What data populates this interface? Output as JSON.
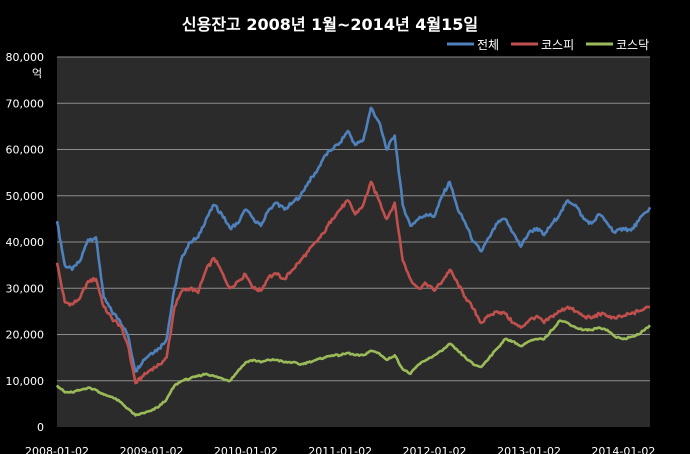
{
  "chart_data": {
    "type": "line",
    "title": "신용잔고  2008년 1월~2014년 4월15일",
    "ylabel": "억",
    "ylim": [
      0,
      80000
    ],
    "yticks": [
      "0",
      "10,000",
      "20,000",
      "30,000",
      "40,000",
      "50,000",
      "60,000",
      "70,000",
      "80,000"
    ],
    "xticks": [
      "2008-01-02",
      "2009-01-02",
      "2010-01-02",
      "2011-01-02",
      "2012-01-02",
      "2013-01-02",
      "2014-01-02"
    ],
    "xrange": [
      "2008-01-02",
      "2014-04-15"
    ],
    "grid": true,
    "legend_position": "top-right",
    "x": [
      "2008-01-02",
      "2008-02-01",
      "2008-03-01",
      "2008-04-01",
      "2008-05-01",
      "2008-06-01",
      "2008-07-01",
      "2008-08-01",
      "2008-09-01",
      "2008-10-01",
      "2008-11-01",
      "2008-12-01",
      "2009-01-01",
      "2009-02-01",
      "2009-03-01",
      "2009-04-01",
      "2009-05-01",
      "2009-06-01",
      "2009-07-01",
      "2009-08-01",
      "2009-09-01",
      "2009-10-01",
      "2009-11-01",
      "2009-12-01",
      "2010-01-01",
      "2010-02-01",
      "2010-03-01",
      "2010-04-01",
      "2010-05-01",
      "2010-06-01",
      "2010-07-01",
      "2010-08-01",
      "2010-09-01",
      "2010-10-01",
      "2010-11-01",
      "2010-12-01",
      "2011-01-01",
      "2011-02-01",
      "2011-03-01",
      "2011-04-01",
      "2011-05-01",
      "2011-06-01",
      "2011-07-01",
      "2011-08-01",
      "2011-09-01",
      "2011-10-01",
      "2011-11-01",
      "2011-12-01",
      "2012-01-01",
      "2012-02-01",
      "2012-03-01",
      "2012-04-01",
      "2012-05-01",
      "2012-06-01",
      "2012-07-01",
      "2012-08-01",
      "2012-09-01",
      "2012-10-01",
      "2012-11-01",
      "2012-12-01",
      "2013-01-01",
      "2013-02-01",
      "2013-03-01",
      "2013-04-01",
      "2013-05-01",
      "2013-06-01",
      "2013-07-01",
      "2013-08-01",
      "2013-09-01",
      "2013-10-01",
      "2013-11-01",
      "2013-12-01",
      "2014-01-01",
      "2014-02-01",
      "2014-03-01",
      "2014-04-15"
    ],
    "series": [
      {
        "name": "전체",
        "color": "#4f81bd",
        "values": [
          44500,
          35000,
          34000,
          36000,
          40500,
          41000,
          28000,
          25000,
          23000,
          20000,
          12000,
          14500,
          16000,
          17000,
          19000,
          30000,
          37000,
          40000,
          41000,
          45000,
          48000,
          46000,
          43000,
          44000,
          47000,
          45000,
          43500,
          47000,
          48500,
          47000,
          48500,
          50000,
          53000,
          55000,
          58500,
          60000,
          61500,
          64000,
          61000,
          62000,
          69000,
          66000,
          60000,
          63000,
          48000,
          43500,
          45000,
          46000,
          45500,
          50000,
          53000,
          47000,
          44000,
          40000,
          38000,
          41000,
          44000,
          45000,
          42000,
          39000,
          42000,
          43000,
          41500,
          44000,
          46000,
          49000,
          48000,
          45000,
          44000,
          46000,
          44000,
          42000,
          43000,
          42500,
          44500,
          47500
        ]
      },
      {
        "name": "코스피",
        "color": "#c0504d",
        "values": [
          35500,
          27000,
          26500,
          28000,
          31500,
          32000,
          26000,
          23500,
          22000,
          18000,
          9500,
          11000,
          12500,
          13500,
          15000,
          26000,
          29500,
          30000,
          29000,
          34000,
          36500,
          33500,
          30000,
          31500,
          33000,
          30000,
          29500,
          32500,
          33000,
          32000,
          34000,
          36000,
          38000,
          40000,
          42000,
          45000,
          47000,
          49000,
          46000,
          48000,
          53000,
          49000,
          45000,
          48500,
          36000,
          32000,
          30000,
          31000,
          29500,
          31500,
          34000,
          31000,
          28000,
          25500,
          22500,
          24000,
          25000,
          24500,
          22500,
          21500,
          23000,
          24000,
          22500,
          24000,
          25000,
          26000,
          25000,
          24000,
          23500,
          24500,
          24000,
          23500,
          24000,
          24500,
          25000,
          26000
        ]
      },
      {
        "name": "코스닥",
        "color": "#9bbb59",
        "values": [
          9000,
          7500,
          7500,
          8000,
          8500,
          8000,
          7000,
          6500,
          5500,
          4000,
          2500,
          3000,
          3500,
          4500,
          6000,
          9000,
          10000,
          10500,
          11000,
          11500,
          11000,
          10500,
          10000,
          12000,
          14000,
          14500,
          14000,
          14500,
          14500,
          14000,
          14000,
          13500,
          14000,
          14500,
          15000,
          15500,
          15500,
          16000,
          15500,
          15500,
          16500,
          16000,
          14500,
          15500,
          12500,
          11500,
          13500,
          14500,
          15500,
          16500,
          18000,
          16500,
          15000,
          13500,
          13000,
          15000,
          17000,
          19000,
          18500,
          17500,
          18500,
          19000,
          19000,
          21000,
          23000,
          22500,
          21500,
          21000,
          21000,
          21500,
          21000,
          19500,
          19000,
          19500,
          20000,
          22000
        ]
      }
    ]
  }
}
